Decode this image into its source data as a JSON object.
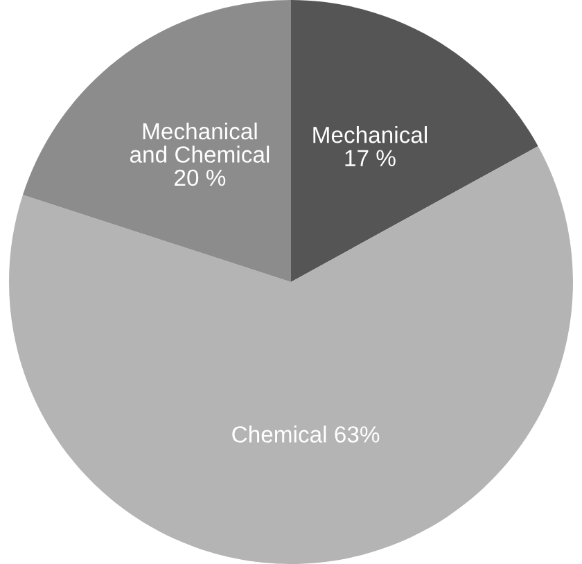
{
  "chart_data": {
    "type": "pie",
    "categories": [
      "Mechanical",
      "Chemical",
      "Mechanical\nand Chemical"
    ],
    "values": [
      17,
      63,
      20
    ],
    "value_labels": [
      "17 %",
      "63%",
      "20 %"
    ],
    "colors": [
      "#555555",
      "#b4b4b4",
      "#8c8c8c"
    ]
  }
}
